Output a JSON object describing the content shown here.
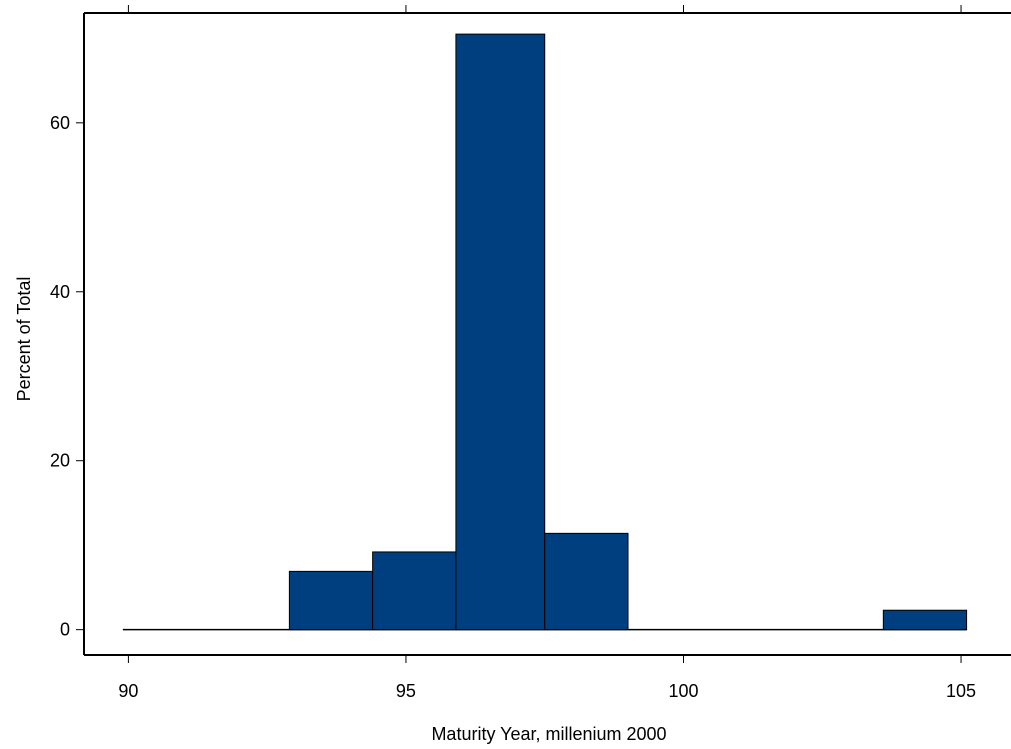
{
  "chart_data": {
    "type": "bar",
    "title": "",
    "xlabel": "Maturity Year, millenium 2000",
    "ylabel": "Percent of Total",
    "x_ticks": [
      90,
      95,
      100,
      105
    ],
    "y_ticks": [
      0,
      20,
      40,
      60
    ],
    "xlim": [
      89.2,
      105.9
    ],
    "ylim": [
      -3,
      73
    ],
    "bins": [
      {
        "x0": 89.9,
        "x1": 91.4,
        "value": 0
      },
      {
        "x0": 91.4,
        "x1": 92.9,
        "value": 0
      },
      {
        "x0": 92.9,
        "x1": 94.4,
        "value": 6.9
      },
      {
        "x0": 94.4,
        "x1": 95.9,
        "value": 9.2
      },
      {
        "x0": 95.9,
        "x1": 97.5,
        "value": 70.5
      },
      {
        "x0": 97.5,
        "x1": 99.0,
        "value": 11.4
      },
      {
        "x0": 99.0,
        "x1": 100.5,
        "value": 0
      },
      {
        "x0": 100.5,
        "x1": 102.0,
        "value": 0
      },
      {
        "x0": 102.0,
        "x1": 103.6,
        "value": 0
      },
      {
        "x0": 103.6,
        "x1": 105.1,
        "value": 2.3
      }
    ],
    "bar_color": "#003f7f",
    "bar_edge_color": "#000000",
    "grid": false,
    "legend": "none"
  }
}
